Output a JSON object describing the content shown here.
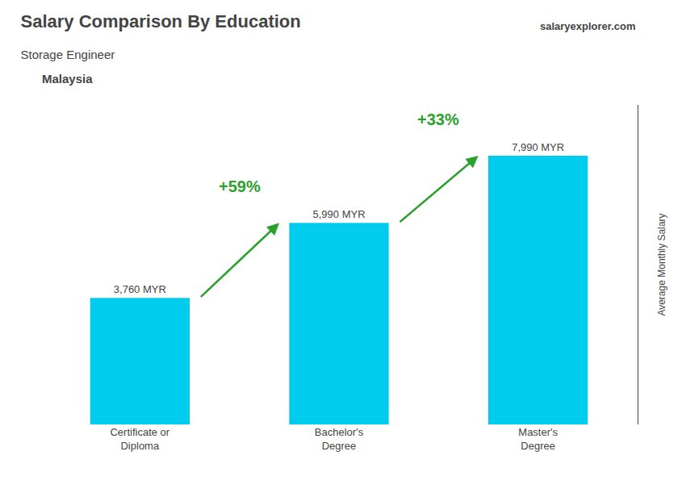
{
  "chart_data": {
    "type": "bar",
    "title": "Salary Comparison By Education",
    "subtitle": "Storage Engineer",
    "categories": [
      "Certificate or\nDiploma",
      "Bachelor's\nDegree",
      "Master's\nDegree"
    ],
    "values": [
      3760,
      5990,
      7990
    ],
    "value_labels": [
      "3,760 MYR",
      "5,990 MYR",
      "7,990 MYR"
    ],
    "data_labels": true,
    "color": "#00ccee",
    "ylabel": "Average Monthly Salary",
    "ylim": [
      0,
      9500
    ],
    "tick_labels": "x",
    "grid": false,
    "annotations": [
      {
        "text": "Malaysia"
      },
      {
        "text": "salaryexplorer.com"
      }
    ],
    "changes": [
      {
        "from": "Certificate or\nDiploma",
        "to": "Bachelor's\nDegree",
        "label": "+59%"
      },
      {
        "from": "Bachelor's\nDegree",
        "to": "Master's\nDegree",
        "label": "+33%"
      }
    ]
  }
}
